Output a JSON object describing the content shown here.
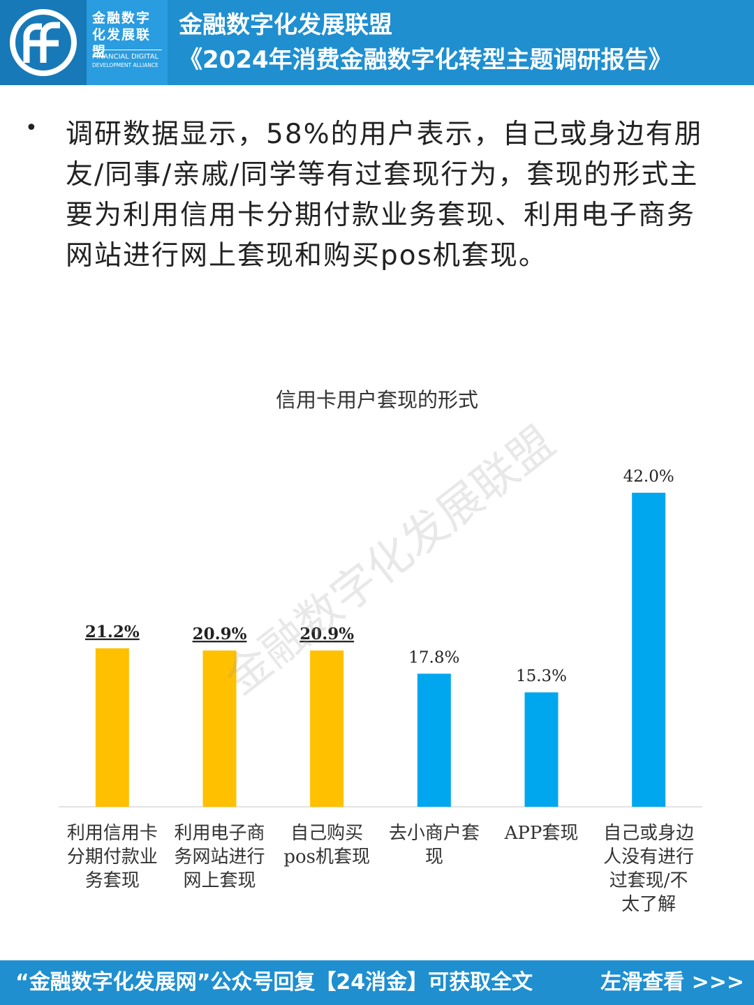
{
  "header": {
    "logo_cn": "金融数字化发展联盟",
    "logo_en_line1": "FINANCIAL DIGITAL",
    "logo_en_line2": "DEVELOPMENT ALLIANCE",
    "title": "金融数字化发展联盟",
    "subtitle": "《2024年消费金融数字化转型主题调研报告》",
    "logo_icon": "alliance-logo-icon"
  },
  "body_text": "调研数据显示，58%的用户表示，自己或身边有朋友/同事/亲戚/同学等有过套现行为，套现的形式主要为利用信用卡分期付款业务套现、利用电子商务网站进行网上套现和购买pos机套现。",
  "watermark": "金融数字化发展联盟",
  "chart_data": {
    "type": "bar",
    "title": "信用卡用户套现的形式",
    "categories": [
      "利用信用卡分期付款业务套现",
      "利用电子商务网站进行网上套现",
      "自己购买pos机套现",
      "去小商户套现",
      "APP套现",
      "自己或身边人没有进行过套现/不太了解"
    ],
    "category_lines": [
      [
        "利用信用卡",
        "分期付款业",
        "务套现"
      ],
      [
        "利用电子商",
        "务网站进行",
        "网上套现"
      ],
      [
        "自己购买",
        "pos机套现"
      ],
      [
        "去小商户套",
        "现"
      ],
      [
        "APP套现"
      ],
      [
        "自己或身边",
        "人没有进行",
        "过套现/不",
        "太了解"
      ]
    ],
    "values": [
      21.2,
      20.9,
      20.9,
      17.8,
      15.3,
      42.0
    ],
    "value_labels": [
      "21.2%",
      "20.9%",
      "20.9%",
      "17.8%",
      "15.3%",
      "42.0%"
    ],
    "highlight": [
      true,
      true,
      true,
      false,
      false,
      false
    ],
    "colors": {
      "highlight": "#ffc000",
      "normal": "#00a7ef"
    },
    "ylim": [
      0,
      42.0
    ],
    "grid": false,
    "legend": "none"
  },
  "footer": {
    "left": "“金融数字化发展网”公众号回复【24消金】可获取全文",
    "right": "左滑查看 >>>"
  },
  "colors": {
    "brand_blue": "#1f8fd0",
    "dark_blue": "#1779b8"
  }
}
